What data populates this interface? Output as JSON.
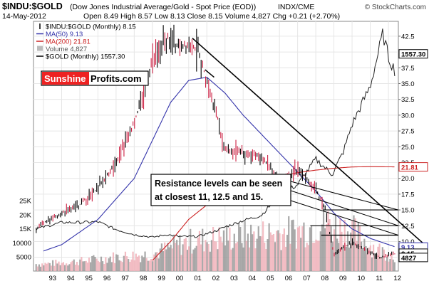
{
  "header": {
    "title_symbol": "$INDU:$GOLD",
    "title_desc": "(Dow Jones Industrial Average/Gold - Spot Price (EOD))",
    "exchange": "INDX/CME",
    "watermark": "© StockCharts.com",
    "date": "14-May-2012",
    "ohlc": "Open 8.49  High 8.57  Low 8.13  Close 8.15  Volume 4,827  Chg +0.21 (+2.70%)",
    "chg_up_icon": "triangle-up-icon"
  },
  "legend": [
    {
      "label": "$INDU:$GOLD (Monthly) 8.15",
      "color": "#000000",
      "kind": "bar"
    },
    {
      "label": "MA(50) 9.13",
      "color": "#3333aa",
      "kind": "line"
    },
    {
      "label": "MA(200) 21.81",
      "color": "#cc2222",
      "kind": "line"
    },
    {
      "label": "Volume 4,827",
      "color": "#bbbbbb",
      "kind": "box"
    },
    {
      "label": "$GOLD (Monthly) 1557.30",
      "color": "#000000",
      "kind": "line"
    }
  ],
  "logo": {
    "part1": "Sunshine",
    "part2": "Profits.com"
  },
  "annotation": {
    "line1": "Resistance levels can be seen",
    "line2": "at closest 11, 12.5 and 15."
  },
  "y_right_ticks": [
    "42.5",
    "40.0",
    "37.5",
    "35.0",
    "32.5",
    "30.0",
    "27.5",
    "25.0",
    "22.5",
    "20.0",
    "17.5",
    "15.0",
    "12.5",
    "10.0",
    "7.5"
  ],
  "y_left_ticks": [
    "25K",
    "20K",
    "15K",
    "10000",
    "5000"
  ],
  "value_labels": [
    {
      "text": "1557.30",
      "color": "#000000",
      "bg": "#ffffff"
    },
    {
      "text": "21.81",
      "color": "#cc2222",
      "bg": "#ffffff"
    },
    {
      "text": "9.13",
      "color": "#3333aa",
      "bg": "#ffffff"
    },
    {
      "text": "8.15",
      "color": "#000000",
      "bg": "#ffffff"
    },
    {
      "text": "4827",
      "color": "#000000",
      "bg": "#ffffff"
    }
  ],
  "x_ticks": [
    "93",
    "94",
    "95",
    "96",
    "97",
    "98",
    "99",
    "00",
    "01",
    "02",
    "03",
    "04",
    "05",
    "06",
    "07",
    "08",
    "09",
    "10",
    "11",
    "12"
  ],
  "colors": {
    "ma50": "#3333aa",
    "ma200": "#cc2222",
    "up": "#000000",
    "down": "#cc2244",
    "vol_up": "#999999",
    "vol_down": "#f0b0b8",
    "logo_red": "#ee2222"
  },
  "chart_data": {
    "type": "line",
    "x_labels": [
      "93",
      "94",
      "95",
      "96",
      "97",
      "98",
      "99",
      "00",
      "01",
      "02",
      "03",
      "04",
      "05",
      "06",
      "07",
      "08",
      "09",
      "10",
      "11",
      "12"
    ],
    "y_range_ratio": [
      6,
      43.5
    ],
    "y_range_volume": [
      0,
      25000
    ],
    "series": [
      {
        "name": "$INDU:$GOLD (Monthly) 8.15",
        "x": [
          1992.6,
          1993,
          1994,
          1995,
          1996,
          1997,
          1998,
          1999,
          1999.8,
          2000.5,
          2001,
          2001.5,
          2002,
          2002.5,
          2003,
          2004,
          2005,
          2006,
          2006.5,
          2007,
          2007.5,
          2008,
          2008.5,
          2009,
          2009.5,
          2010,
          2011,
          2011.5,
          2012,
          2012.4
        ],
        "values": [
          12,
          13,
          14.5,
          15.8,
          18.5,
          22.5,
          28.8,
          38.5,
          42.3,
          40.5,
          41.2,
          40.2,
          35.5,
          30.5,
          24.5,
          24,
          23.5,
          19.5,
          20.5,
          21.5,
          20,
          18,
          15.5,
          8,
          9,
          9.8,
          8.3,
          7.5,
          7.8,
          8.15
        ]
      },
      {
        "name": "MA(50) 9.13",
        "x": [
          1993,
          1994,
          1996,
          1998,
          1999,
          2000,
          2001,
          2002,
          2003,
          2004,
          2005,
          2006,
          2007,
          2008,
          2009,
          2010,
          2011,
          2012.4
        ],
        "values": [
          8.5,
          9.5,
          13.5,
          20,
          26,
          32,
          35.5,
          36,
          33.5,
          30,
          27,
          24,
          21,
          18,
          14.5,
          12,
          10.5,
          9.13
        ]
      },
      {
        "name": "MA(200) 21.81",
        "x": [
          1999,
          2000,
          2001,
          2002,
          2003,
          2004,
          2005,
          2006,
          2007,
          2008,
          2009,
          2010,
          2011,
          2012.4
        ],
        "values": [
          7,
          10,
          13.5,
          15.8,
          17.5,
          18.6,
          19.5,
          20.3,
          20.9,
          21.3,
          21.6,
          21.8,
          21.85,
          21.81
        ]
      },
      {
        "name": "$GOLD (Monthly) 1557.30",
        "x": [
          1992.6,
          1993,
          1994,
          1995,
          1996,
          1997,
          1998,
          1999,
          1999.8,
          2000.5,
          2001.5,
          2002.5,
          2003,
          2004,
          2005,
          2006,
          2007,
          2008,
          2008.9,
          2009.5,
          2010,
          2011,
          2011.7,
          2012,
          2012.4
        ],
        "values": [
          335,
          350,
          385,
          385,
          390,
          330,
          290,
          270,
          290,
          275,
          275,
          320,
          350,
          400,
          440,
          600,
          680,
          880,
          760,
          930,
          1150,
          1450,
          1860,
          1680,
          1557.3
        ]
      },
      {
        "name": "Volume 4,827",
        "x": [
          1993,
          1995,
          1997,
          1999,
          2001,
          2003,
          2005,
          2007,
          2008.5,
          2009,
          2010,
          2011,
          2012.4
        ],
        "values": [
          2500,
          3500,
          5000,
          6000,
          10500,
          12000,
          13000,
          14000,
          17500,
          16000,
          14500,
          9000,
          4827
        ]
      }
    ],
    "resistance_levels": [
      11,
      12.5,
      15
    ],
    "grid": true,
    "legend_position": "top-left"
  }
}
